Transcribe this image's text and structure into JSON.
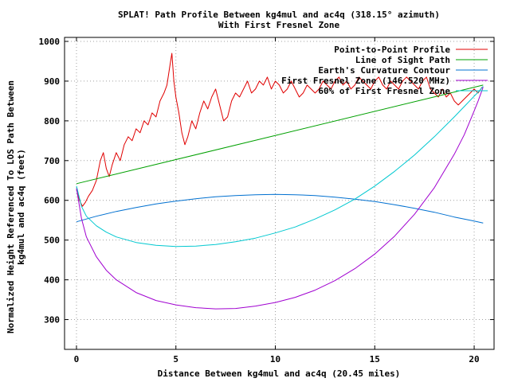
{
  "chart_data": {
    "type": "line",
    "title": "SPLAT! Path Profile Between kg4mul and ac4q (318.15° azimuth)",
    "subtitle": "With First Fresnel Zone",
    "xlabel": "Distance Between kg4mul and ac4q (20.45 miles)",
    "ylabel_line1": "Normalized Height Referenced To LOS Path Between",
    "ylabel_line2": "kg4mul and ac4q (feet)",
    "xlim": [
      -0.6,
      21.0
    ],
    "ylim": [
      225,
      1010
    ],
    "xticks": [
      0,
      5,
      10,
      15,
      20
    ],
    "xtick_labels": [
      "0",
      "5",
      "10",
      "15",
      "20"
    ],
    "yticks": [
      300,
      400,
      500,
      600,
      700,
      800,
      900,
      1000
    ],
    "ytick_labels": [
      "300",
      "400",
      "500",
      "600",
      "700",
      "800",
      "900",
      "1000"
    ],
    "grid": true,
    "legend_position": "top-right",
    "series": [
      {
        "name": "Point-to-Point Profile",
        "color": "#e00000",
        "x": [
          0,
          0.15,
          0.3,
          0.45,
          0.6,
          0.8,
          1.0,
          1.2,
          1.35,
          1.5,
          1.65,
          1.8,
          2.0,
          2.2,
          2.4,
          2.6,
          2.8,
          3.0,
          3.2,
          3.4,
          3.6,
          3.8,
          4.0,
          4.2,
          4.4,
          4.55,
          4.7,
          4.8,
          4.9,
          5.0,
          5.15,
          5.3,
          5.45,
          5.6,
          5.8,
          6.0,
          6.2,
          6.4,
          6.6,
          6.8,
          7.0,
          7.2,
          7.4,
          7.6,
          7.8,
          8.0,
          8.2,
          8.4,
          8.6,
          8.8,
          9.0,
          9.2,
          9.4,
          9.6,
          9.8,
          10.0,
          10.2,
          10.4,
          10.6,
          10.8,
          11.0,
          11.2,
          11.4,
          11.6,
          11.8,
          12.0,
          12.2,
          12.4,
          12.6,
          12.8,
          13.0,
          13.2,
          13.4,
          13.6,
          13.8,
          14.0,
          14.2,
          14.4,
          14.6,
          14.8,
          15.0,
          15.2,
          15.4,
          15.6,
          15.8,
          16.0,
          16.2,
          16.4,
          16.6,
          16.8,
          17.0,
          17.2,
          17.4,
          17.6,
          17.8,
          18.0,
          18.2,
          18.4,
          18.6,
          18.8,
          19.0,
          19.2,
          19.4,
          19.6,
          19.8,
          20.0,
          20.2,
          20.4
        ],
        "values": [
          630,
          600,
          585,
          595,
          610,
          625,
          650,
          700,
          720,
          680,
          660,
          690,
          720,
          700,
          740,
          760,
          750,
          780,
          770,
          800,
          790,
          820,
          810,
          850,
          870,
          890,
          940,
          970,
          900,
          860,
          820,
          770,
          740,
          760,
          800,
          780,
          820,
          850,
          830,
          860,
          880,
          840,
          800,
          810,
          850,
          870,
          860,
          880,
          900,
          870,
          880,
          900,
          890,
          910,
          880,
          900,
          890,
          870,
          880,
          900,
          880,
          860,
          870,
          890,
          880,
          870,
          880,
          900,
          890,
          880,
          900,
          910,
          890,
          900,
          880,
          890,
          910,
          900,
          890,
          880,
          900,
          910,
          890,
          880,
          900,
          890,
          880,
          900,
          910,
          900,
          890,
          880,
          900,
          910,
          880,
          870,
          860,
          880,
          860,
          870,
          850,
          840,
          850,
          860,
          870,
          880,
          870,
          885
        ]
      },
      {
        "name": "Line of Sight Path",
        "color": "#00a000",
        "x": [
          0,
          20.45
        ],
        "values": [
          642,
          890
        ]
      },
      {
        "name": "Earth's Curvature Contour",
        "color": "#0070d0",
        "x": [
          0,
          1,
          2,
          3,
          4,
          5,
          6,
          7,
          8,
          9,
          10,
          11,
          12,
          13,
          14,
          15,
          16,
          17,
          18,
          19,
          20,
          20.45
        ],
        "values": [
          546,
          560,
          572,
          582,
          591,
          598,
          604,
          609,
          612,
          614,
          615,
          614,
          612,
          608,
          603,
          597,
          589,
          580,
          570,
          558,
          548,
          543
        ]
      },
      {
        "name": "First Fresnel Zone (146.520 MHz)",
        "color": "#a000d0",
        "x": [
          0,
          0.25,
          0.5,
          1,
          1.5,
          2,
          3,
          4,
          5,
          6,
          7,
          8,
          9,
          10,
          11,
          12,
          13,
          14,
          15,
          16,
          17,
          18,
          19,
          19.5,
          20,
          20.2,
          20.45
        ],
        "values": [
          630,
          555,
          508,
          458,
          424,
          400,
          368,
          348,
          337,
          330,
          327,
          328,
          334,
          343,
          356,
          374,
          398,
          428,
          465,
          510,
          565,
          632,
          716,
          765,
          825,
          850,
          885
        ]
      },
      {
        "name": "60% of First Fresnel Zone",
        "color": "#00c8d0",
        "x": [
          0,
          0.25,
          0.5,
          1,
          1.5,
          2,
          3,
          4,
          5,
          6,
          7,
          8,
          9,
          10,
          11,
          12,
          13,
          14,
          15,
          16,
          17,
          18,
          19,
          19.5,
          20,
          20.2,
          20.45
        ],
        "values": [
          636,
          585,
          560,
          536,
          520,
          508,
          494,
          487,
          484,
          485,
          489,
          496,
          505,
          518,
          533,
          553,
          576,
          603,
          636,
          673,
          714,
          760,
          810,
          836,
          862,
          872,
          887
        ]
      }
    ]
  }
}
